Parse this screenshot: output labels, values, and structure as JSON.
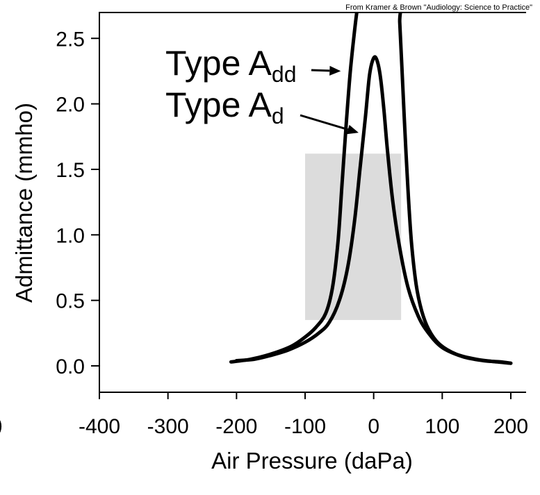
{
  "credit": "From Kramer & Brown \"Audiology: Science to Practice\"",
  "left_edge_fragment": ")",
  "chart_data": {
    "type": "line",
    "xlabel": "Air Pressure (daPa)",
    "ylabel": "Admittance (mmho)",
    "xlim": [
      -400,
      200
    ],
    "ylim": [
      -0.2,
      2.7
    ],
    "x_ticks": [
      "-400",
      "-300",
      "-200",
      "-100",
      "0",
      "100",
      "200"
    ],
    "y_ticks": [
      "0.0",
      "0.5",
      "1.0",
      "1.5",
      "2.0",
      "2.5"
    ],
    "normal_region": {
      "x_range": [
        -100,
        40
      ],
      "y_range": [
        0.35,
        1.62
      ],
      "color": "#dcdcdc"
    },
    "series": [
      {
        "id": "type-add",
        "x": [
          -208,
          -180,
          -150,
          -120,
          -100,
          -85,
          -70,
          -60,
          -52,
          -46,
          -40,
          -34,
          -28,
          -24,
          -20,
          35,
          38,
          41,
          45,
          50,
          55,
          62,
          70,
          80,
          95,
          120,
          150,
          180,
          200
        ],
        "y": [
          0.03,
          0.05,
          0.09,
          0.15,
          0.22,
          0.29,
          0.4,
          0.6,
          0.95,
          1.4,
          1.85,
          2.25,
          2.55,
          2.72,
          2.8,
          2.8,
          2.62,
          2.3,
          1.85,
          1.35,
          0.95,
          0.62,
          0.42,
          0.28,
          0.17,
          0.09,
          0.05,
          0.03,
          0.02
        ]
      },
      {
        "id": "type-ad",
        "x": [
          -200,
          -175,
          -150,
          -125,
          -100,
          -80,
          -65,
          -50,
          -38,
          -28,
          -20,
          -12,
          -6,
          0,
          5,
          10,
          15,
          20,
          28,
          38,
          50,
          65,
          80,
          100,
          130,
          160,
          185,
          200
        ],
        "y": [
          0.04,
          0.05,
          0.08,
          0.12,
          0.18,
          0.25,
          0.33,
          0.5,
          0.75,
          1.1,
          1.5,
          1.9,
          2.22,
          2.35,
          2.33,
          2.2,
          1.95,
          1.65,
          1.25,
          0.9,
          0.6,
          0.38,
          0.25,
          0.14,
          0.07,
          0.04,
          0.03,
          0.02
        ]
      }
    ],
    "annotations": [
      {
        "id": "annot-type-add",
        "label": "Type A",
        "subscript": "dd",
        "series": "type-add",
        "target": [
          -48,
          2.25
        ]
      },
      {
        "id": "annot-type-ad",
        "label": "Type A",
        "subscript": "d",
        "series": "type-ad",
        "target": [
          -22,
          1.78
        ]
      }
    ],
    "grid": false,
    "legend": "none",
    "line_color": "#000000"
  }
}
